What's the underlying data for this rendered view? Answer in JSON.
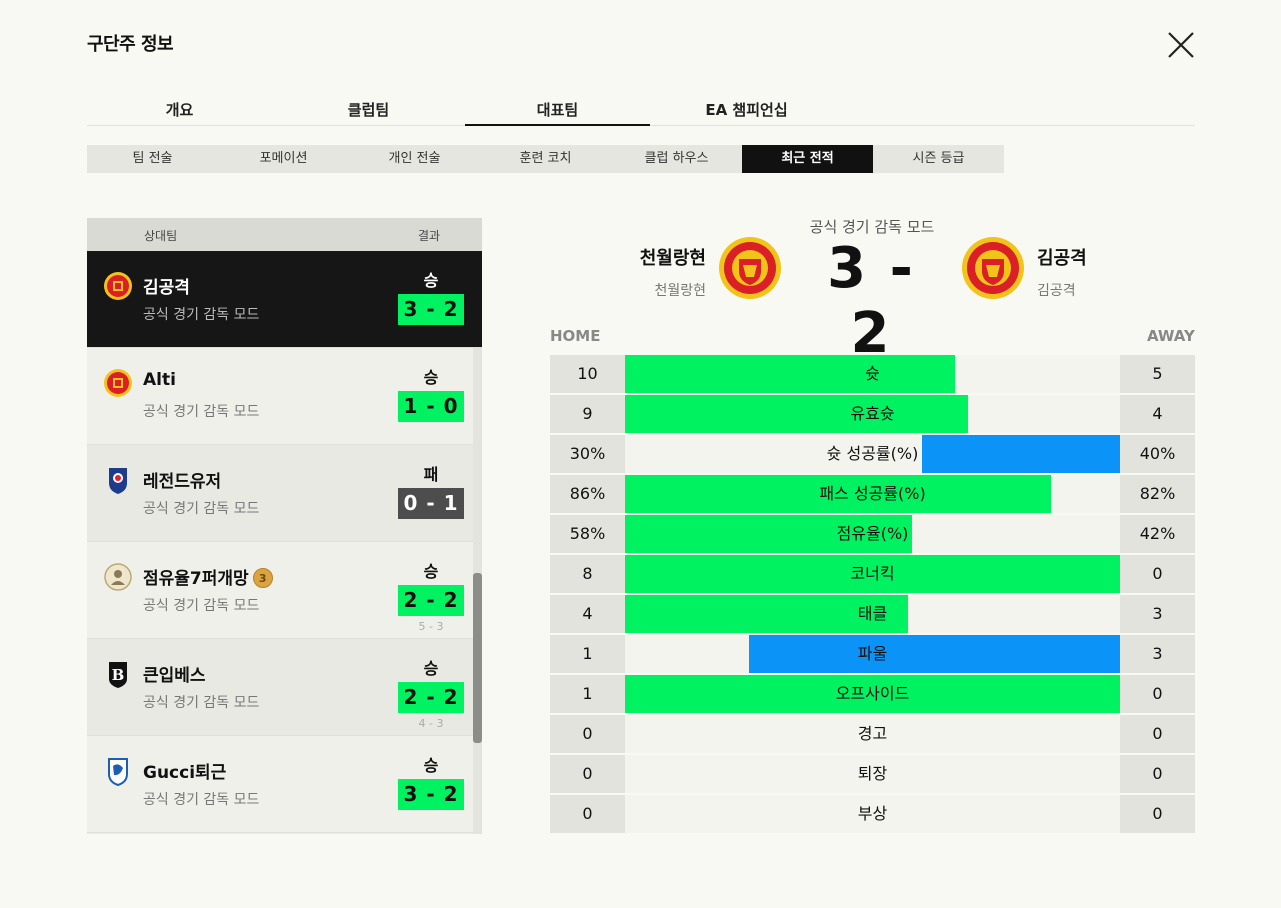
{
  "page": {
    "title": "구단주 정보"
  },
  "top_tabs": [
    {
      "label": "개요",
      "active": false
    },
    {
      "label": "클럽팀",
      "active": false
    },
    {
      "label": "대표팀",
      "active": true
    },
    {
      "label": "EA 챔피언십",
      "active": false
    }
  ],
  "sub_tabs": [
    {
      "label": "팀 전술",
      "active": false
    },
    {
      "label": "포메이션",
      "active": false
    },
    {
      "label": "개인 전술",
      "active": false
    },
    {
      "label": "훈련 코치",
      "active": false
    },
    {
      "label": "클럽 하우스",
      "active": false
    },
    {
      "label": "최근 전적",
      "active": true
    },
    {
      "label": "시즌 등급",
      "active": false
    }
  ],
  "list": {
    "header_opponent": "상대팀",
    "header_result": "결과",
    "matches": [
      {
        "name": "김공격",
        "mode": "공식 경기 감독 모드",
        "outcome": "승",
        "score": "3 - 2",
        "pk": "",
        "crest": "man-utd-crest-icon",
        "selected": true
      },
      {
        "name": "Alti",
        "mode": "공식 경기 감독 모드",
        "outcome": "승",
        "score": "1 - 0",
        "pk": "",
        "crest": "man-utd-crest-icon",
        "selected": false
      },
      {
        "name": "레전드유저",
        "mode": "공식 경기 감독 모드",
        "outcome": "패",
        "score": "0 - 1",
        "pk": "",
        "crest": "korea-national-team-crest-icon",
        "selected": false
      },
      {
        "name": "점유율7퍼개망",
        "mode": "공식 경기 감독 모드",
        "outcome": "승",
        "score": "2 - 2",
        "pk": "5 - 3",
        "crest": "icon-badge-crest-icon",
        "selected": false,
        "medal": "3"
      },
      {
        "name": "큰입베스",
        "mode": "공식 경기 감독 모드",
        "outcome": "승",
        "score": "2 - 2",
        "pk": "4 - 3",
        "crest": "b-crest-icon",
        "selected": false
      },
      {
        "name": "Gucci퇴근",
        "mode": "공식 경기 감독 모드",
        "outcome": "승",
        "score": "3 - 2",
        "pk": "",
        "crest": "genk-crest-icon",
        "selected": false
      }
    ]
  },
  "detail": {
    "mode": "공식 경기 감독 모드",
    "score": "3 - 2",
    "home": {
      "name": "천월랑현",
      "sub": "천월랑현"
    },
    "away": {
      "name": "김공격",
      "sub": "김공격"
    },
    "home_label": "HOME",
    "away_label": "AWAY",
    "stats": [
      {
        "label": "슛",
        "home": "10",
        "away": "5",
        "fill": 0.667,
        "side": "home"
      },
      {
        "label": "유효슛",
        "home": "9",
        "away": "4",
        "fill": 0.692,
        "side": "home"
      },
      {
        "label": "슛 성공률(%)",
        "home": "30%",
        "away": "40%",
        "fill": 0.4,
        "side": "away"
      },
      {
        "label": "패스 성공률(%)",
        "home": "86%",
        "away": "82%",
        "fill": 0.86,
        "side": "home"
      },
      {
        "label": "점유율(%)",
        "home": "58%",
        "away": "42%",
        "fill": 0.58,
        "side": "home"
      },
      {
        "label": "코너킥",
        "home": "8",
        "away": "0",
        "fill": 1.0,
        "side": "home"
      },
      {
        "label": "태클",
        "home": "4",
        "away": "3",
        "fill": 0.571,
        "side": "home"
      },
      {
        "label": "파울",
        "home": "1",
        "away": "3",
        "fill": 0.75,
        "side": "away"
      },
      {
        "label": "오프사이드",
        "home": "1",
        "away": "0",
        "fill": 1.0,
        "side": "home"
      },
      {
        "label": "경고",
        "home": "0",
        "away": "0",
        "fill": 0,
        "side": "home"
      },
      {
        "label": "퇴장",
        "home": "0",
        "away": "0",
        "fill": 0,
        "side": "home"
      },
      {
        "label": "부상",
        "home": "0",
        "away": "0",
        "fill": 0,
        "side": "home"
      }
    ]
  },
  "colors": {
    "win": "#00f260",
    "loss": "#4d4d4d",
    "home_bar": "#00f260",
    "away_bar": "#0b93f7"
  }
}
